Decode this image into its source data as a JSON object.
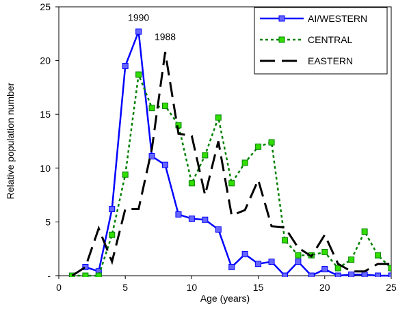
{
  "chart_data": {
    "type": "line",
    "xlabel": "Age (years)",
    "ylabel": "Relative population number",
    "xlim": [
      0,
      25
    ],
    "ylim": [
      0,
      25
    ],
    "x_ticks": [
      "0",
      "5",
      "10",
      "15",
      "20",
      "25"
    ],
    "y_ticks": [
      "-",
      "5",
      "10",
      "15",
      "20",
      "25"
    ],
    "legend_position": "top-right",
    "grid": false,
    "annotations": [
      {
        "text": "1990",
        "x": 6,
        "y": 23.7
      },
      {
        "text": "1988",
        "x": 8,
        "y": 21.9
      }
    ],
    "series": [
      {
        "name": "AI/WESTERN",
        "color": "#0000ff",
        "marker_fill": "#6666ff",
        "style": "solid",
        "x": [
          1,
          2,
          3,
          4,
          5,
          6,
          7,
          8,
          9,
          10,
          11,
          12,
          13,
          14,
          15,
          16,
          17,
          18,
          19,
          20,
          21,
          22,
          23,
          24,
          25
        ],
        "values": [
          0,
          0.8,
          0.4,
          6.2,
          19.5,
          22.7,
          11.1,
          10.3,
          5.7,
          5.3,
          5.2,
          4.3,
          0.8,
          2.0,
          1.1,
          1.3,
          0,
          1.3,
          0,
          0.6,
          0,
          0.1,
          0.1,
          0,
          0
        ]
      },
      {
        "name": "CENTRAL",
        "color": "#008000",
        "marker_fill": "#33dd00",
        "style": "dotted",
        "x": [
          1,
          2,
          3,
          4,
          5,
          6,
          7,
          8,
          9,
          10,
          11,
          12,
          13,
          14,
          15,
          16,
          17,
          18,
          19,
          20,
          21,
          22,
          23,
          24,
          25
        ],
        "values": [
          0,
          0,
          0,
          3.8,
          9.4,
          18.7,
          15.6,
          15.8,
          14.0,
          8.6,
          11.2,
          14.7,
          8.6,
          10.5,
          12.0,
          12.4,
          3.3,
          1.9,
          1.9,
          2.2,
          0.7,
          1.5,
          4.1,
          1.9,
          0.7
        ]
      },
      {
        "name": "EASTERN",
        "color": "#000000",
        "style": "dashed",
        "x": [
          1,
          2,
          3,
          4,
          5,
          6,
          7,
          8,
          9,
          10,
          11,
          12,
          13,
          14,
          15,
          16,
          17,
          18,
          19,
          20,
          21,
          22,
          23,
          24,
          25
        ],
        "values": [
          0,
          0.8,
          4.4,
          1.3,
          6.2,
          6.2,
          11.8,
          20.8,
          13.2,
          13.0,
          7.5,
          12.5,
          5.6,
          6.1,
          8.9,
          4.6,
          4.5,
          2.6,
          1.8,
          3.8,
          1.1,
          0.4,
          0.4,
          1.1,
          1.1
        ]
      }
    ]
  }
}
